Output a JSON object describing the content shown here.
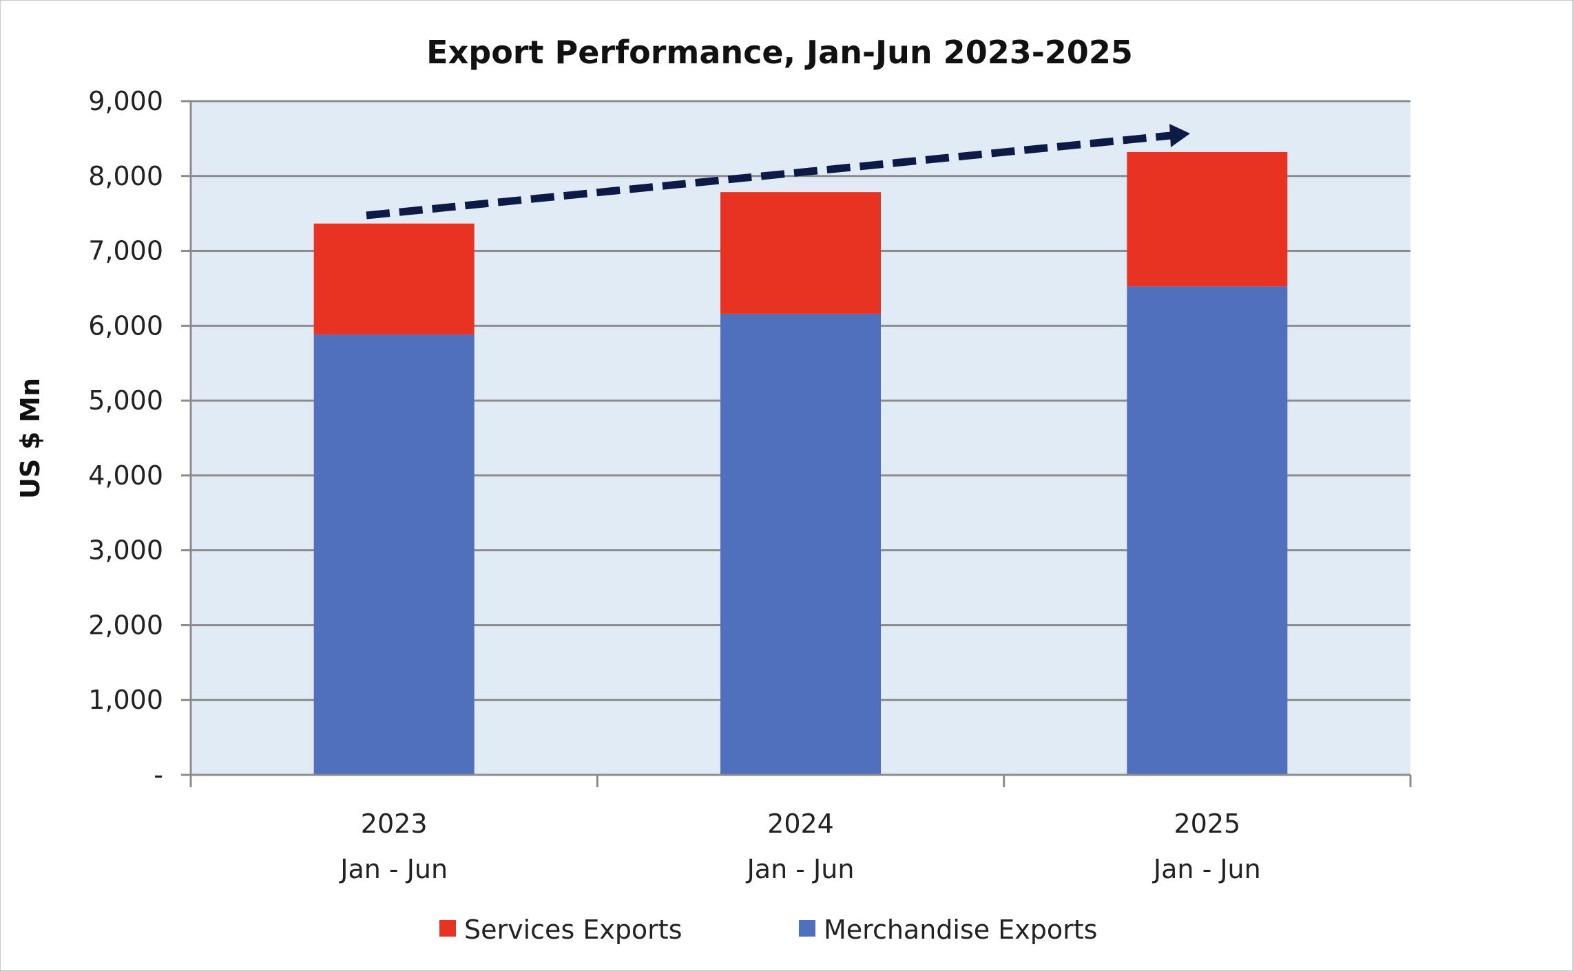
{
  "chart_data": {
    "type": "bar",
    "stacked": true,
    "title": "Export Performance, Jan-Jun 2023-2025",
    "xlabel": "",
    "ylabel": "US $ Mn",
    "ylim": [
      0,
      9000
    ],
    "yticks": [
      0,
      1000,
      2000,
      3000,
      4000,
      5000,
      6000,
      7000,
      8000,
      9000
    ],
    "ytick_labels": [
      "-",
      "1,000",
      "2,000",
      "3,000",
      "4,000",
      "5,000",
      "6,000",
      "7,000",
      "8,000",
      "9,000"
    ],
    "categories": [
      {
        "year": "2023",
        "period": "Jan - Jun"
      },
      {
        "year": "2024",
        "period": "Jan - Jun"
      },
      {
        "year": "2025",
        "period": "Jan - Jun"
      }
    ],
    "series": [
      {
        "name": "Merchandise Exports",
        "color": "#5070BE",
        "values": [
          5880,
          6160,
          6525
        ]
      },
      {
        "name": "Services Exports",
        "color": "#E83222",
        "values": [
          1485,
          1625,
          1795
        ]
      }
    ],
    "legend": {
      "placement": "bottom",
      "order": [
        "Services Exports",
        "Merchandise Exports"
      ]
    },
    "annotations": [
      {
        "type": "dashed-arrow",
        "description_color": "#0D1A45",
        "from_category": "2023",
        "to_category": "2025",
        "trend": "upward"
      }
    ],
    "grid": true,
    "plot_background": "#E1EBF6"
  }
}
